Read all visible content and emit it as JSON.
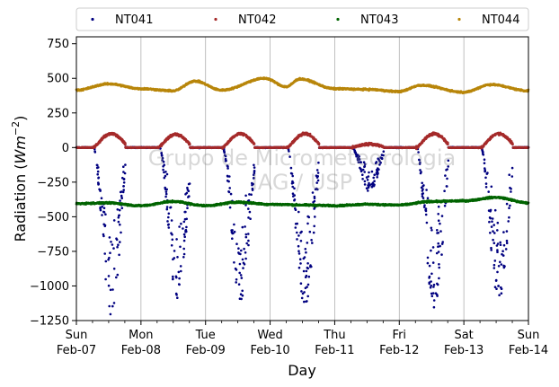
{
  "chart_data": {
    "type": "scatter",
    "title": "",
    "xlabel": "Day",
    "ylabel_prefix": "Radiation (",
    "ylabel_math": "Wm",
    "ylabel_exp": "−2",
    "ylabel_suffix": ")",
    "ylim": [
      -1250,
      800
    ],
    "yticks": [
      750,
      500,
      250,
      0,
      -250,
      -500,
      -750,
      -1000,
      -1250
    ],
    "ytick_labels": [
      "750",
      "500",
      "250",
      "0",
      "−250",
      "−500",
      "−750",
      "−1000",
      "−1250"
    ],
    "xlim": [
      "2021-02-07",
      "2021-02-14"
    ],
    "xticks": [
      {
        "day": "Sun",
        "date": "Feb-07"
      },
      {
        "day": "Mon",
        "date": "Feb-08"
      },
      {
        "day": "Tue",
        "date": "Feb-09"
      },
      {
        "day": "Wed",
        "date": "Feb-10"
      },
      {
        "day": "Thu",
        "date": "Feb-11"
      },
      {
        "day": "Fri",
        "date": "Feb-12"
      },
      {
        "day": "Sat",
        "date": "Feb-13"
      },
      {
        "day": "Sun",
        "date": "Feb-14"
      }
    ],
    "grid": "vertical",
    "legend_placement": "top (outside)",
    "watermark": [
      "Grupo de Micrometeorologia",
      "IAG / USP"
    ],
    "series": [
      {
        "name": "NT041",
        "color": "#000080",
        "baseline": 0,
        "day_peaks": [
          -1220,
          -1100,
          -1110,
          -1160,
          -320,
          -1170,
          -1120
        ],
        "day_peak_hours": [
          13.0,
          13.5,
          13.0,
          13.0,
          13.0,
          13.0,
          13.0
        ],
        "points": [
          [
            "2021-02-07 06:00",
            -5
          ],
          [
            "2021-02-07 08:00",
            -150
          ],
          [
            "2021-02-07 09:00",
            -250
          ],
          [
            "2021-02-07 10:00",
            -400
          ],
          [
            "2021-02-07 11:00",
            -700
          ],
          [
            "2021-02-07 12:00",
            -1000
          ],
          [
            "2021-02-07 13:00",
            -1220
          ],
          [
            "2021-02-07 14:00",
            -950
          ],
          [
            "2021-02-07 15:00",
            -550
          ],
          [
            "2021-02-07 16:00",
            -300
          ],
          [
            "2021-02-07 17:00",
            -100
          ],
          [
            "2021-02-07 18:00",
            -5
          ],
          [
            "2021-02-08 13:30",
            -1100
          ],
          [
            "2021-02-09 13:00",
            -1110
          ],
          [
            "2021-02-10 13:00",
            -1160
          ],
          [
            "2021-02-11 13:00",
            -320
          ],
          [
            "2021-02-12 13:00",
            -1170
          ],
          [
            "2021-02-13 13:00",
            -1120
          ]
        ]
      },
      {
        "name": "NT042",
        "color": "#a52a2a",
        "baseline": 0,
        "day_peaks": [
          100,
          95,
          100,
          100,
          25,
          100,
          100
        ],
        "day_peak_hours": [
          13.0,
          13.0,
          13.0,
          13.0,
          13.0,
          13.0,
          13.0
        ],
        "points": [
          [
            "2021-02-07 07:00",
            0
          ],
          [
            "2021-02-07 13:00",
            100
          ],
          [
            "2021-02-07 18:00",
            0
          ],
          [
            "2021-02-08 13:00",
            95
          ],
          [
            "2021-02-09 13:00",
            100
          ],
          [
            "2021-02-10 13:00",
            100
          ],
          [
            "2021-02-11 13:00",
            25
          ],
          [
            "2021-02-12 13:00",
            100
          ],
          [
            "2021-02-13 13:00",
            100
          ]
        ]
      },
      {
        "name": "NT043",
        "color": "#006400",
        "points": [
          [
            "2021-02-07 00:00",
            -405
          ],
          [
            "2021-02-07 12:00",
            -400
          ],
          [
            "2021-02-08 00:00",
            -420
          ],
          [
            "2021-02-08 12:00",
            -390
          ],
          [
            "2021-02-09 00:00",
            -420
          ],
          [
            "2021-02-09 12:00",
            -395
          ],
          [
            "2021-02-10 00:00",
            -410
          ],
          [
            "2021-02-10 12:00",
            -415
          ],
          [
            "2021-02-11 00:00",
            -420
          ],
          [
            "2021-02-11 12:00",
            -410
          ],
          [
            "2021-02-12 00:00",
            -415
          ],
          [
            "2021-02-12 12:00",
            -390
          ],
          [
            "2021-02-13 00:00",
            -385
          ],
          [
            "2021-02-13 12:00",
            -360
          ],
          [
            "2021-02-14 00:00",
            -400
          ]
        ]
      },
      {
        "name": "NT044",
        "color": "#b8860b",
        "points": [
          [
            "2021-02-07 00:00",
            415
          ],
          [
            "2021-02-07 12:00",
            460
          ],
          [
            "2021-02-08 00:00",
            425
          ],
          [
            "2021-02-08 12:00",
            410
          ],
          [
            "2021-02-08 20:00",
            480
          ],
          [
            "2021-02-09 06:00",
            415
          ],
          [
            "2021-02-09 22:00",
            500
          ],
          [
            "2021-02-10 06:00",
            440
          ],
          [
            "2021-02-10 11:00",
            495
          ],
          [
            "2021-02-11 00:00",
            425
          ],
          [
            "2021-02-11 12:00",
            420
          ],
          [
            "2021-02-12 00:00",
            405
          ],
          [
            "2021-02-12 08:00",
            450
          ],
          [
            "2021-02-13 00:00",
            400
          ],
          [
            "2021-02-13 10:00",
            455
          ],
          [
            "2021-02-14 00:00",
            410
          ]
        ]
      }
    ]
  }
}
